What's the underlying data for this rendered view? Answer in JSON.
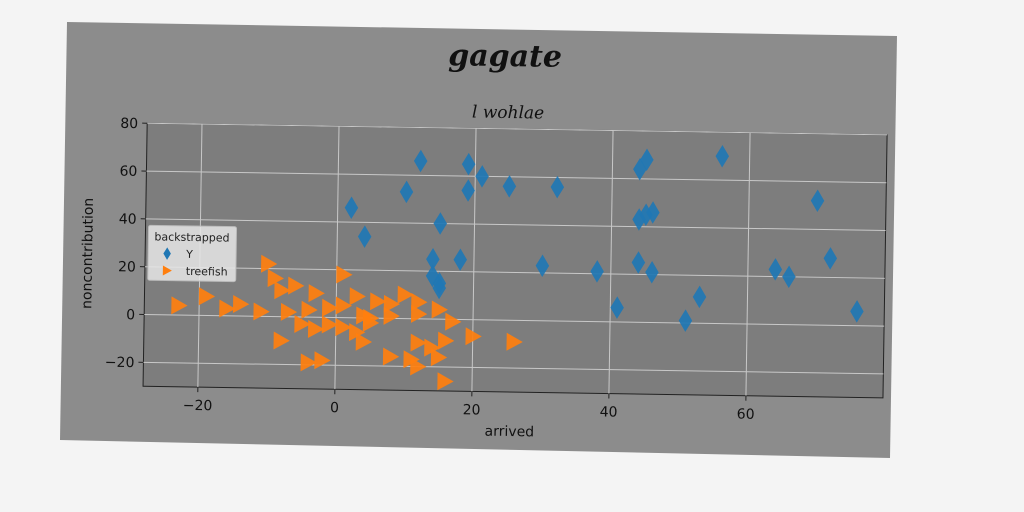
{
  "chart_data": {
    "type": "scatter",
    "title": "gagate",
    "subtitle": "l wohlae",
    "xlabel": "arrived",
    "ylabel": "noncontribution",
    "xlim": [
      -28,
      80
    ],
    "ylim": [
      -30,
      80
    ],
    "xticks": [
      -20,
      0,
      20,
      40,
      60
    ],
    "yticks": [
      -20,
      0,
      20,
      40,
      60,
      80
    ],
    "grid": true,
    "legend": {
      "title": "backstrapped",
      "position": "center-left"
    },
    "colors": {
      "plot_bg": "#7d7d7d",
      "grid": "#c8c8c8",
      "Y": "#1f77b4",
      "treefish": "#ff7f0e"
    },
    "series": [
      {
        "name": "Y",
        "marker": "diamond",
        "points": [
          [
            12,
            66
          ],
          [
            19,
            65
          ],
          [
            44,
            64
          ],
          [
            45,
            68
          ],
          [
            56,
            70
          ],
          [
            21,
            60
          ],
          [
            25,
            56
          ],
          [
            32,
            56
          ],
          [
            19,
            54
          ],
          [
            10,
            53
          ],
          [
            70,
            52
          ],
          [
            2,
            46
          ],
          [
            45,
            45
          ],
          [
            46,
            46
          ],
          [
            44,
            43
          ],
          [
            15,
            40
          ],
          [
            4,
            34
          ],
          [
            72,
            28
          ],
          [
            14,
            25
          ],
          [
            18,
            25
          ],
          [
            44,
            25
          ],
          [
            64,
            23
          ],
          [
            66,
            20
          ],
          [
            30,
            23
          ],
          [
            38,
            21
          ],
          [
            46,
            21
          ],
          [
            14,
            18
          ],
          [
            15,
            15
          ],
          [
            53,
            11
          ],
          [
            15,
            13
          ],
          [
            41,
            6
          ],
          [
            76,
            6
          ],
          [
            51,
            1
          ]
        ]
      },
      {
        "name": "treefish",
        "marker": "triangle-right",
        "points": [
          [
            -10,
            22
          ],
          [
            -9,
            16
          ],
          [
            -6,
            13
          ],
          [
            -8,
            11
          ],
          [
            -3,
            10
          ],
          [
            1,
            18
          ],
          [
            3,
            9
          ],
          [
            6,
            7
          ],
          [
            8,
            6
          ],
          [
            10,
            10
          ],
          [
            12,
            7
          ],
          [
            -19,
            8
          ],
          [
            -14,
            5
          ],
          [
            -16,
            3
          ],
          [
            -23,
            4
          ],
          [
            -11,
            2
          ],
          [
            -7,
            2
          ],
          [
            -4,
            3
          ],
          [
            -1,
            4
          ],
          [
            1,
            5
          ],
          [
            4,
            1
          ],
          [
            5,
            0
          ],
          [
            -5,
            -3
          ],
          [
            -1,
            -3
          ],
          [
            1,
            -4
          ],
          [
            3,
            -6
          ],
          [
            5,
            -2
          ],
          [
            8,
            1
          ],
          [
            12,
            2
          ],
          [
            15,
            4
          ],
          [
            17,
            -1
          ],
          [
            20,
            -7
          ],
          [
            26,
            -9
          ],
          [
            -3,
            -5
          ],
          [
            4,
            -10
          ],
          [
            -8,
            -10
          ],
          [
            12,
            -10
          ],
          [
            14,
            -12
          ],
          [
            16,
            -9
          ],
          [
            8,
            -16
          ],
          [
            11,
            -17
          ],
          [
            15,
            -16
          ],
          [
            -4,
            -19
          ],
          [
            -2,
            -18
          ],
          [
            12,
            -20
          ],
          [
            16,
            -26
          ]
        ]
      }
    ]
  }
}
